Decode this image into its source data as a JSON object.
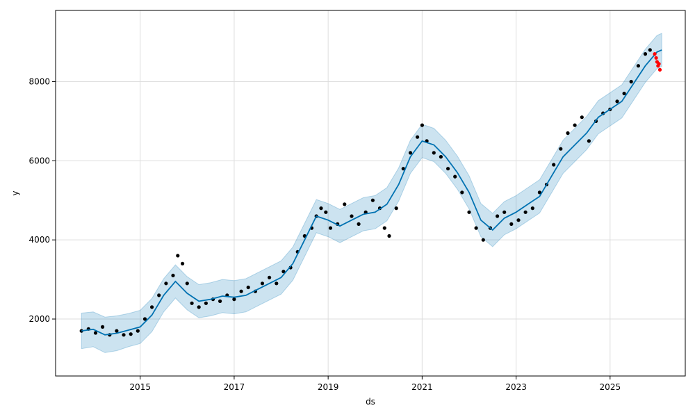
{
  "chart_data": {
    "type": "scatter",
    "xlabel": "ds",
    "ylabel": "y",
    "xlim": [
      2013.2,
      2026.6
    ],
    "ylim": [
      560,
      9800
    ],
    "grid": true,
    "x_ticks": [
      2015,
      2017,
      2019,
      2021,
      2023,
      2025
    ],
    "x_tick_labels": [
      "2015",
      "2017",
      "2019",
      "2021",
      "2023",
      "2025"
    ],
    "y_ticks": [
      2000,
      4000,
      6000,
      8000
    ],
    "y_tick_labels": [
      "2000",
      "4000",
      "6000",
      "8000"
    ],
    "colors": {
      "observed": "#000000",
      "recent_observed": "#ff0000",
      "forecast": "#0072b2",
      "interval": "#0072b2"
    },
    "forecast": {
      "x": [
        2013.75,
        2014.0,
        2014.25,
        2014.5,
        2014.75,
        2015.0,
        2015.25,
        2015.5,
        2015.75,
        2016.0,
        2016.25,
        2016.5,
        2016.75,
        2017.0,
        2017.25,
        2017.5,
        2017.75,
        2018.0,
        2018.25,
        2018.5,
        2018.75,
        2019.0,
        2019.25,
        2019.5,
        2019.75,
        2020.0,
        2020.25,
        2020.5,
        2020.75,
        2021.0,
        2021.25,
        2021.5,
        2021.75,
        2022.0,
        2022.25,
        2022.5,
        2022.75,
        2023.0,
        2023.25,
        2023.5,
        2023.75,
        2024.0,
        2024.25,
        2024.5,
        2024.75,
        2025.0,
        2025.25,
        2025.5,
        2025.75,
        2026.0,
        2026.1
      ],
      "yhat": [
        1700,
        1740,
        1600,
        1640,
        1720,
        1800,
        2100,
        2600,
        2950,
        2650,
        2450,
        2500,
        2580,
        2550,
        2600,
        2750,
        2900,
        3050,
        3400,
        4000,
        4600,
        4500,
        4350,
        4500,
        4650,
        4700,
        4900,
        5400,
        6100,
        6500,
        6400,
        6100,
        5700,
        5200,
        4500,
        4250,
        4550,
        4700,
        4900,
        5100,
        5600,
        6100,
        6400,
        6700,
        7100,
        7300,
        7500,
        7950,
        8400,
        8750,
        8800
      ],
      "yhat_lower": [
        1250,
        1300,
        1150,
        1200,
        1300,
        1380,
        1680,
        2180,
        2530,
        2230,
        2030,
        2080,
        2160,
        2130,
        2180,
        2330,
        2480,
        2630,
        2980,
        3580,
        4180,
        4080,
        3930,
        4080,
        4230,
        4280,
        4480,
        4980,
        5680,
        6080,
        5980,
        5680,
        5280,
        4780,
        4080,
        3830,
        4130,
        4280,
        4480,
        4680,
        5180,
        5680,
        5980,
        6280,
        6680,
        6880,
        7080,
        7530,
        7980,
        8330,
        8380
      ],
      "yhat_upper": [
        2150,
        2180,
        2050,
        2080,
        2140,
        2220,
        2520,
        3020,
        3370,
        3070,
        2870,
        2920,
        3000,
        2970,
        3020,
        3170,
        3320,
        3470,
        3820,
        4420,
        5020,
        4920,
        4770,
        4920,
        5070,
        5120,
        5320,
        5820,
        6520,
        6920,
        6820,
        6520,
        6120,
        5620,
        4920,
        4670,
        4970,
        5120,
        5320,
        5520,
        6020,
        6520,
        6820,
        7120,
        7520,
        7720,
        7920,
        8370,
        8820,
        9170,
        9220
      ]
    },
    "observed": {
      "x": [
        2013.75,
        2013.9,
        2014.05,
        2014.2,
        2014.35,
        2014.5,
        2014.65,
        2014.8,
        2014.95,
        2015.1,
        2015.25,
        2015.4,
        2015.55,
        2015.7,
        2015.8,
        2015.9,
        2016.0,
        2016.1,
        2016.25,
        2016.4,
        2016.55,
        2016.7,
        2016.85,
        2017.0,
        2017.15,
        2017.3,
        2017.45,
        2017.6,
        2017.75,
        2017.9,
        2018.05,
        2018.2,
        2018.35,
        2018.5,
        2018.65,
        2018.75,
        2018.85,
        2018.95,
        2019.05,
        2019.2,
        2019.35,
        2019.5,
        2019.65,
        2019.8,
        2019.95,
        2020.1,
        2020.2,
        2020.3,
        2020.45,
        2020.6,
        2020.75,
        2020.9,
        2021.0,
        2021.1,
        2021.25,
        2021.4,
        2021.55,
        2021.7,
        2021.85,
        2022.0,
        2022.15,
        2022.3,
        2022.45,
        2022.6,
        2022.75,
        2022.9,
        2023.05,
        2023.2,
        2023.35,
        2023.5,
        2023.65,
        2023.8,
        2023.95,
        2024.1,
        2024.25,
        2024.4,
        2024.55,
        2024.7,
        2024.85,
        2025.0,
        2025.15,
        2025.3,
        2025.45,
        2025.6,
        2025.75,
        2025.85
      ],
      "y": [
        1700,
        1750,
        1650,
        1800,
        1600,
        1700,
        1600,
        1620,
        1700,
        2000,
        2300,
        2600,
        2900,
        3100,
        3600,
        3400,
        2900,
        2400,
        2300,
        2400,
        2500,
        2450,
        2600,
        2500,
        2700,
        2800,
        2700,
        2900,
        3050,
        2900,
        3200,
        3300,
        3700,
        4100,
        4300,
        4600,
        4800,
        4700,
        4300,
        4400,
        4900,
        4600,
        4400,
        4700,
        5000,
        4800,
        4300,
        4100,
        4800,
        5800,
        6200,
        6600,
        6900,
        6500,
        6200,
        6100,
        5800,
        5600,
        5200,
        4700,
        4300,
        4000,
        4300,
        4600,
        4700,
        4400,
        4500,
        4700,
        4800,
        5200,
        5400,
        5900,
        6300,
        6700,
        6900,
        7100,
        6500,
        7000,
        7200,
        7300,
        7500,
        7700,
        8000,
        8400,
        8700,
        8800
      ]
    },
    "recent_observed": {
      "x": [
        2025.95,
        2025.98,
        2026.0,
        2026.02,
        2026.04,
        2026.06
      ],
      "y": [
        8700,
        8600,
        8500,
        8400,
        8450,
        8300
      ]
    }
  }
}
